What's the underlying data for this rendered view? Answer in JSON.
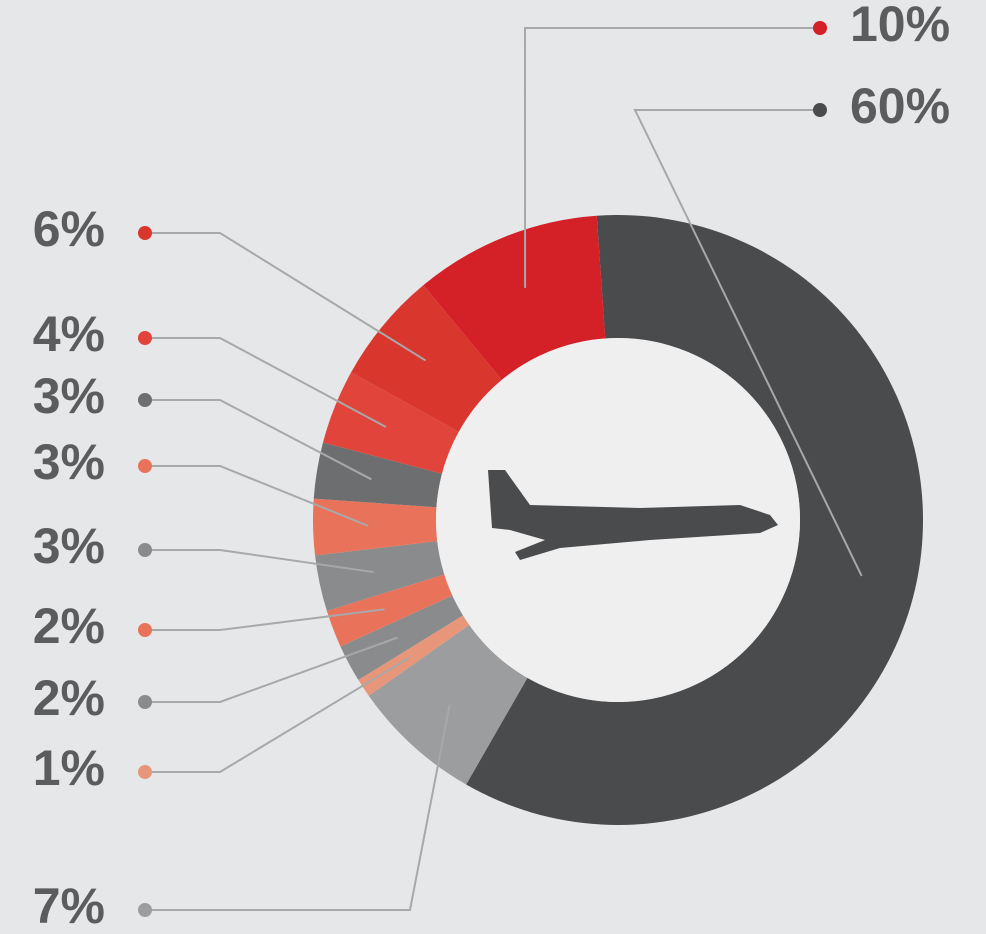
{
  "chart_data": {
    "type": "pie",
    "values": [
      60,
      7,
      1,
      2,
      2,
      3,
      3,
      3,
      4,
      6,
      10
    ],
    "value_labels": [
      "60%",
      "7%",
      "1%",
      "2%",
      "2%",
      "3%",
      "3%",
      "3%",
      "4%",
      "6%",
      "10%"
    ],
    "colors": [
      "#4a4b4d",
      "#9c9d9f",
      "#e8967a",
      "#8a8b8d",
      "#e8735a",
      "#8a8b8d",
      "#e8735a",
      "#6d6e70",
      "#e0443a",
      "#d9372e",
      "#d42027"
    ]
  }
}
